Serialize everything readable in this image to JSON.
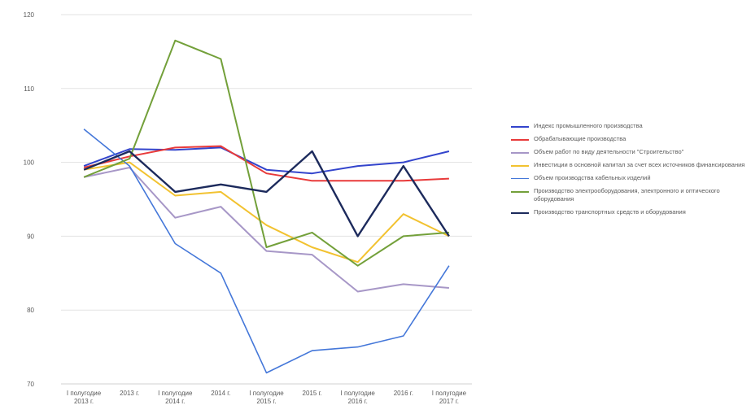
{
  "chart_data": {
    "type": "line",
    "title": "",
    "xlabel": "",
    "ylabel": "",
    "ylim": [
      70,
      120
    ],
    "yticks": [
      70,
      80,
      90,
      100,
      110,
      120
    ],
    "ytick_labels": [
      "70",
      "80",
      "90",
      "100",
      "110",
      "120"
    ],
    "categories": [
      [
        "I полугодие",
        "2013 г."
      ],
      [
        "2013 г."
      ],
      [
        "I полугодие",
        "2014 г."
      ],
      [
        "2014 г."
      ],
      [
        "I полугодие",
        "2015 г."
      ],
      [
        "2015 г."
      ],
      [
        "I полугодие",
        "2016 г."
      ],
      [
        "2016 г."
      ],
      [
        "I полугодие",
        "2017 г."
      ]
    ],
    "grid": true,
    "legend_position": "right",
    "series": [
      {
        "name": "Индекс промышленного производства",
        "color": "#3344cc",
        "width": 2,
        "values": [
          99.5,
          101.8,
          101.7,
          102.0,
          99.0,
          98.5,
          99.5,
          100.0,
          101.5
        ]
      },
      {
        "name": "Обрабатывающие производства",
        "color": "#e83a3a",
        "width": 2,
        "values": [
          99.3,
          100.8,
          102.0,
          102.2,
          98.5,
          97.5,
          97.5,
          97.5,
          97.8
        ]
      },
      {
        "name": "Объем работ по виду деятельности \"Строительство\"",
        "color": "#a797c7",
        "width": 2,
        "values": [
          98.0,
          99.3,
          92.5,
          94.0,
          88.0,
          87.5,
          82.5,
          83.5,
          83.0
        ]
      },
      {
        "name": "Инвестиции в основной капитал за счет всех источников финансирования",
        "color": "#f2c230",
        "width": 2,
        "values": [
          99.0,
          100.0,
          95.5,
          96.0,
          91.5,
          88.5,
          86.5,
          93.0,
          90.0
        ]
      },
      {
        "name": "Объем производства кабельных изделий",
        "color": "#4477d9",
        "width": 1.6,
        "values": [
          104.5,
          99.5,
          89.0,
          85.0,
          71.5,
          74.5,
          75.0,
          76.5,
          86.0
        ]
      },
      {
        "name": "Производство электрооборудования, электронного и оптического оборудования",
        "color": "#73a03a",
        "width": 2,
        "values": [
          98.0,
          100.5,
          116.5,
          114.0,
          88.5,
          90.5,
          86.0,
          90.0,
          90.5
        ]
      },
      {
        "name": "Производство транспортных средств и оборудования",
        "color": "#1c2a5c",
        "width": 2.4,
        "values": [
          99.0,
          101.5,
          96.0,
          97.0,
          96.0,
          101.5,
          90.0,
          99.5,
          90.0
        ]
      }
    ]
  }
}
